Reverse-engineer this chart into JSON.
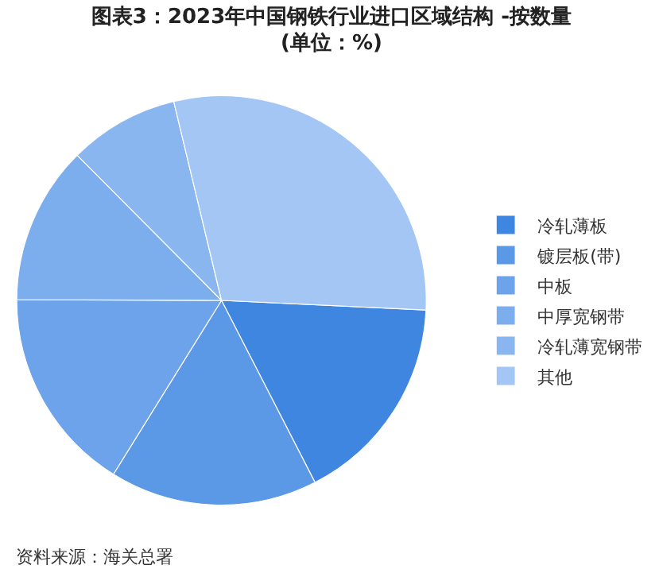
{
  "chart_data": {
    "type": "pie",
    "title": "图表3：2023年中国钢铁行业进口区域结构 -按数量(单位：%)",
    "categories": [
      "冷轧薄板",
      "镀层板(带)",
      "中板",
      "中厚宽钢带",
      "冷轧薄宽钢带",
      "其他"
    ],
    "values": [
      16.7,
      16.4,
      16.2,
      12.5,
      8.7,
      29.5
    ],
    "colors": [
      "#3f86e0",
      "#5b98e6",
      "#6ca3ea",
      "#7caeee",
      "#8ab6ef",
      "#a3c6f5"
    ],
    "legend": "right",
    "annotations": [
      "资料来源：海关总署"
    ]
  }
}
